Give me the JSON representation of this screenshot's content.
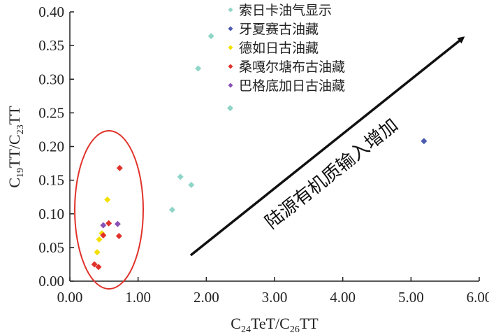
{
  "chart_data": {
    "type": "scatter",
    "xlabel": {
      "main": "C",
      "sub1": "24",
      "mid": "TeT/C",
      "sub2": "26",
      "end": "TT"
    },
    "ylabel": {
      "main": "C",
      "sub1": "19",
      "mid": "TT/C",
      "sub2": "23",
      "end": "TT"
    },
    "xlim": [
      0,
      6
    ],
    "ylim": [
      0,
      0.4
    ],
    "x_ticks": [
      "0.00",
      "1.00",
      "2.00",
      "3.00",
      "4.00",
      "5.00",
      "6.00"
    ],
    "x_tick_values": [
      0,
      1,
      2,
      3,
      4,
      5,
      6
    ],
    "y_ticks": [
      "0.00",
      "0.05",
      "0.10",
      "0.15",
      "0.20",
      "0.25",
      "0.30",
      "0.35",
      "0.40"
    ],
    "y_tick_values": [
      0,
      0.05,
      0.1,
      0.15,
      0.2,
      0.25,
      0.3,
      0.35,
      0.4
    ],
    "grid": false,
    "legend_position": "top-right",
    "series": [
      {
        "name": "索日卡油气显示",
        "color": "#8fd5c8",
        "points": [
          [
            2.07,
            0.364
          ],
          [
            1.88,
            0.316
          ],
          [
            2.35,
            0.257
          ],
          [
            1.62,
            0.155
          ],
          [
            1.78,
            0.143
          ],
          [
            1.5,
            0.106
          ]
        ]
      },
      {
        "name": "牙夏赛古油藏",
        "color": "#4a5bb0",
        "points": [
          [
            5.19,
            0.208
          ]
        ]
      },
      {
        "name": "德如日古油藏",
        "color": "#f2e000",
        "points": [
          [
            0.55,
            0.121
          ],
          [
            0.47,
            0.071
          ],
          [
            0.43,
            0.062
          ],
          [
            0.4,
            0.043
          ]
        ]
      },
      {
        "name": "桑嘎尔塘布古油藏",
        "color": "#e0322a",
        "points": [
          [
            0.73,
            0.168
          ],
          [
            0.57,
            0.086
          ],
          [
            0.49,
            0.068
          ],
          [
            0.72,
            0.067
          ],
          [
            0.36,
            0.025
          ],
          [
            0.42,
            0.021
          ]
        ]
      },
      {
        "name": "巴格底加日古油藏",
        "color": "#8a52b8",
        "points": [
          [
            0.49,
            0.083
          ],
          [
            0.7,
            0.085
          ]
        ]
      }
    ],
    "annotations": {
      "arrow_label": "陆源有机质输入增加"
    }
  }
}
